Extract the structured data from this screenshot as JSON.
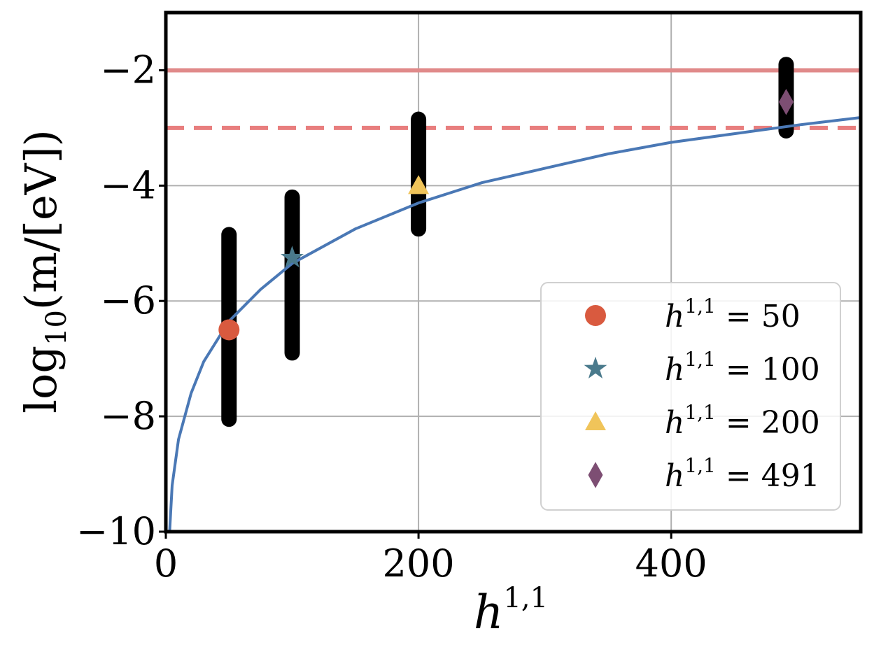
{
  "chart_data": {
    "type": "scatter",
    "xlabel": "h",
    "xlabel_sup": "1,1",
    "ylabel_prefix": "log",
    "ylabel_sub": "10",
    "ylabel_suffix": "(m/[eV])",
    "xlim": [
      0,
      550
    ],
    "ylim": [
      -10,
      -1
    ],
    "x_ticks": [
      0,
      200,
      400
    ],
    "x_tick_labels": [
      "0",
      "200",
      "400"
    ],
    "y_ticks": [
      -10,
      -8,
      -6,
      -4,
      -2
    ],
    "y_tick_labels": [
      "−10",
      "−8",
      "−6",
      "−4",
      "−2"
    ],
    "grid": true,
    "legend_position": "lower-right",
    "scatter_columns": [
      {
        "x": 50,
        "y_min": -8.05,
        "y_max": -4.85
      },
      {
        "x": 100,
        "y_min": -6.9,
        "y_max": -4.2
      },
      {
        "x": 200,
        "y_min": -4.75,
        "y_max": -2.85
      },
      {
        "x": 491,
        "y_min": -3.05,
        "y_max": -1.9
      }
    ],
    "series": [
      {
        "name": "h^{1,1} = 50",
        "legend_prefix": "h",
        "legend_sup": "1,1",
        "legend_suffix": " = 50",
        "x": 50,
        "y": -6.5,
        "marker": "circle",
        "color": "#d95a3f"
      },
      {
        "name": "h^{1,1} = 100",
        "legend_prefix": "h",
        "legend_sup": "1,1",
        "legend_suffix": " = 100",
        "x": 100,
        "y": -5.25,
        "marker": "star",
        "color": "#4a7a8c"
      },
      {
        "name": "h^{1,1} = 200",
        "legend_prefix": "h",
        "legend_sup": "1,1",
        "legend_suffix": " = 200",
        "x": 200,
        "y": -4.0,
        "marker": "triangle",
        "color": "#f0c45a"
      },
      {
        "name": "h^{1,1} = 491",
        "legend_prefix": "h",
        "legend_sup": "1,1",
        "legend_suffix": " = 491",
        "x": 491,
        "y": -2.55,
        "marker": "diamond",
        "color": "#7d4e73"
      }
    ],
    "fit_curve": {
      "color": "#4a78b5",
      "points": [
        [
          3,
          -10.0
        ],
        [
          5,
          -9.2
        ],
        [
          10,
          -8.4
        ],
        [
          20,
          -7.6
        ],
        [
          30,
          -7.05
        ],
        [
          50,
          -6.35
        ],
        [
          75,
          -5.8
        ],
        [
          100,
          -5.35
        ],
        [
          150,
          -4.75
        ],
        [
          200,
          -4.3
        ],
        [
          250,
          -3.95
        ],
        [
          300,
          -3.7
        ],
        [
          350,
          -3.45
        ],
        [
          400,
          -3.25
        ],
        [
          450,
          -3.1
        ],
        [
          500,
          -2.95
        ],
        [
          550,
          -2.82
        ]
      ]
    },
    "hlines": [
      {
        "y": -2,
        "style": "solid",
        "color": "#e08a8a"
      },
      {
        "y": -3,
        "style": "dashed",
        "color": "#e87e7e"
      }
    ]
  }
}
